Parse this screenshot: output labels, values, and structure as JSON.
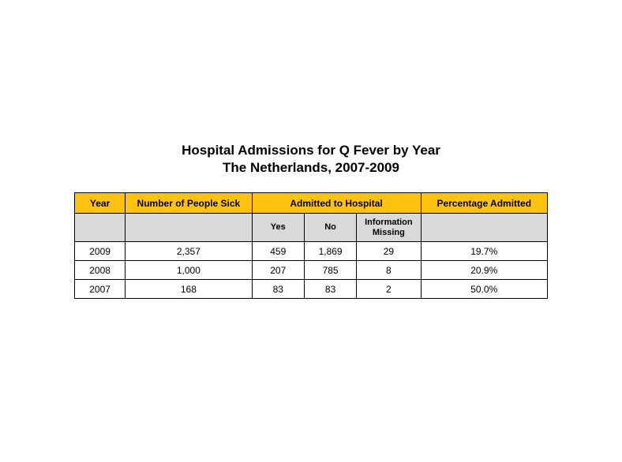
{
  "title": {
    "line1": "Hospital Admissions for Q Fever by Year",
    "line2": "The Netherlands, 2007-2009"
  },
  "table": {
    "type": "table",
    "header_bg": "#ffc20e",
    "subheader_bg": "#d9d9d9",
    "border_color": "#000000",
    "text_color": "#000000",
    "font_size": 12,
    "columns": {
      "year": "Year",
      "sick": "Number of People Sick",
      "admitted": "Admitted to Hospital",
      "pct": "Percentage Admitted"
    },
    "subcolumns": {
      "yes": "Yes",
      "no": "No",
      "info_missing": "Information Missing"
    },
    "rows": [
      {
        "year": "2009",
        "sick": "2,357",
        "yes": "459",
        "no": "1,869",
        "info": "29",
        "pct": "19.7%"
      },
      {
        "year": "2008",
        "sick": "1,000",
        "yes": "207",
        "no": "785",
        "info": "8",
        "pct": "20.9%"
      },
      {
        "year": "2007",
        "sick": "168",
        "yes": "83",
        "no": "83",
        "info": "2",
        "pct": "50.0%"
      }
    ]
  }
}
